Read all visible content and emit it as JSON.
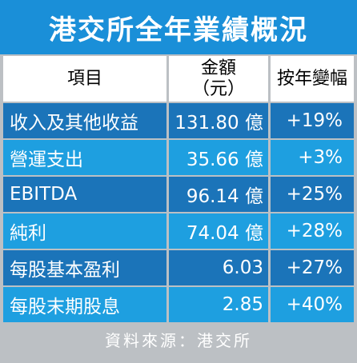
{
  "title": "港交所全年業績概況",
  "headers": {
    "item": "項目",
    "amount_line1": "金額",
    "amount_line2": "（元）",
    "change": "按年變幅"
  },
  "rows": [
    {
      "item": "收入及其他收益",
      "amount": "131.80 億",
      "change": "+19%"
    },
    {
      "item": "營運支出",
      "amount": "35.66 億",
      "change": "+3%"
    },
    {
      "item": "EBITDA",
      "amount": "96.14 億",
      "change": "+25%"
    },
    {
      "item": "純利",
      "amount": "74.04 億",
      "change": "+28%"
    },
    {
      "item": "每股基本盈利",
      "amount": "6.03",
      "change": "+27%"
    },
    {
      "item": "每股末期股息",
      "amount": "2.85",
      "change": "+40%"
    }
  ],
  "footer": "資料來源：港交所",
  "colors": {
    "title_bg": "#1a8fd8",
    "row_dark": "#1b74b9",
    "row_light": "#1e9fe0",
    "frame": "#bcc0c4"
  }
}
